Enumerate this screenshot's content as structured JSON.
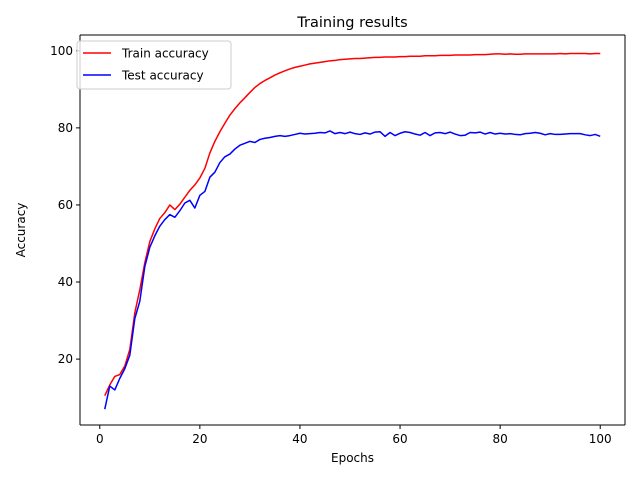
{
  "chart_data": {
    "type": "line",
    "title": "Training results",
    "xlabel": "Epochs",
    "ylabel": "Accuracy",
    "xlim": [
      -3.95,
      104.95
    ],
    "ylim": [
      2.9,
      104.1
    ],
    "xticks": [
      0,
      20,
      40,
      60,
      80,
      100
    ],
    "yticks": [
      20,
      40,
      60,
      80,
      100
    ],
    "grid": false,
    "legend_position": "top-left",
    "x": [
      1,
      2,
      3,
      4,
      5,
      6,
      7,
      8,
      9,
      10,
      11,
      12,
      13,
      14,
      15,
      16,
      17,
      18,
      19,
      20,
      21,
      22,
      23,
      24,
      25,
      26,
      27,
      28,
      29,
      30,
      31,
      32,
      33,
      34,
      35,
      36,
      37,
      38,
      39,
      40,
      41,
      42,
      43,
      44,
      45,
      46,
      47,
      48,
      49,
      50,
      51,
      52,
      53,
      54,
      55,
      56,
      57,
      58,
      59,
      60,
      61,
      62,
      63,
      64,
      65,
      66,
      67,
      68,
      69,
      70,
      71,
      72,
      73,
      74,
      75,
      76,
      77,
      78,
      79,
      80,
      81,
      82,
      83,
      84,
      85,
      86,
      87,
      88,
      89,
      90,
      91,
      92,
      93,
      94,
      95,
      96,
      97,
      98,
      99,
      100
    ],
    "series": [
      {
        "name": "Train accuracy",
        "color": "#ff0000",
        "values": [
          10.5,
          13.3,
          15.5,
          16.0,
          18.2,
          22.5,
          32.0,
          38.0,
          45.0,
          50.5,
          53.8,
          56.5,
          58.0,
          60.0,
          58.8,
          60.2,
          62.0,
          63.8,
          65.2,
          67.0,
          69.5,
          73.5,
          76.5,
          79.0,
          81.2,
          83.3,
          85.0,
          86.5,
          87.8,
          89.2,
          90.5,
          91.5,
          92.3,
          93.0,
          93.7,
          94.3,
          94.8,
          95.3,
          95.7,
          96.0,
          96.3,
          96.6,
          96.8,
          97.0,
          97.2,
          97.4,
          97.5,
          97.7,
          97.8,
          97.9,
          98.0,
          98.0,
          98.1,
          98.2,
          98.3,
          98.3,
          98.4,
          98.4,
          98.4,
          98.5,
          98.5,
          98.6,
          98.6,
          98.6,
          98.7,
          98.7,
          98.7,
          98.8,
          98.8,
          98.8,
          98.9,
          98.9,
          98.9,
          98.9,
          99.0,
          99.0,
          99.0,
          99.1,
          99.2,
          99.2,
          99.1,
          99.2,
          99.1,
          99.1,
          99.2,
          99.2,
          99.2,
          99.2,
          99.2,
          99.2,
          99.2,
          99.3,
          99.2,
          99.3,
          99.3,
          99.3,
          99.3,
          99.2,
          99.3,
          99.3
        ]
      },
      {
        "name": "Test accuracy",
        "color": "#0000ff",
        "values": [
          7.0,
          13.0,
          12.0,
          15.0,
          17.5,
          21.0,
          30.5,
          35.0,
          44.0,
          49.0,
          52.0,
          54.5,
          56.2,
          57.5,
          56.8,
          58.5,
          60.5,
          61.2,
          59.2,
          62.5,
          63.5,
          67.2,
          68.5,
          71.0,
          72.5,
          73.2,
          74.5,
          75.5,
          76.0,
          76.5,
          76.2,
          77.0,
          77.3,
          77.5,
          77.8,
          78.0,
          77.8,
          78.0,
          78.3,
          78.6,
          78.4,
          78.5,
          78.6,
          78.8,
          78.7,
          79.2,
          78.5,
          78.8,
          78.5,
          78.9,
          78.5,
          78.3,
          78.7,
          78.4,
          78.9,
          79.0,
          77.8,
          78.8,
          78.0,
          78.6,
          79.0,
          78.8,
          78.4,
          78.1,
          78.8,
          78.0,
          78.7,
          78.8,
          78.5,
          78.9,
          78.4,
          78.0,
          78.1,
          78.8,
          78.7,
          78.9,
          78.4,
          78.8,
          78.4,
          78.6,
          78.4,
          78.5,
          78.3,
          78.2,
          78.5,
          78.6,
          78.8,
          78.6,
          78.2,
          78.5,
          78.3,
          78.3,
          78.4,
          78.5,
          78.5,
          78.5,
          78.2,
          78.0,
          78.3,
          77.8
        ]
      }
    ]
  }
}
